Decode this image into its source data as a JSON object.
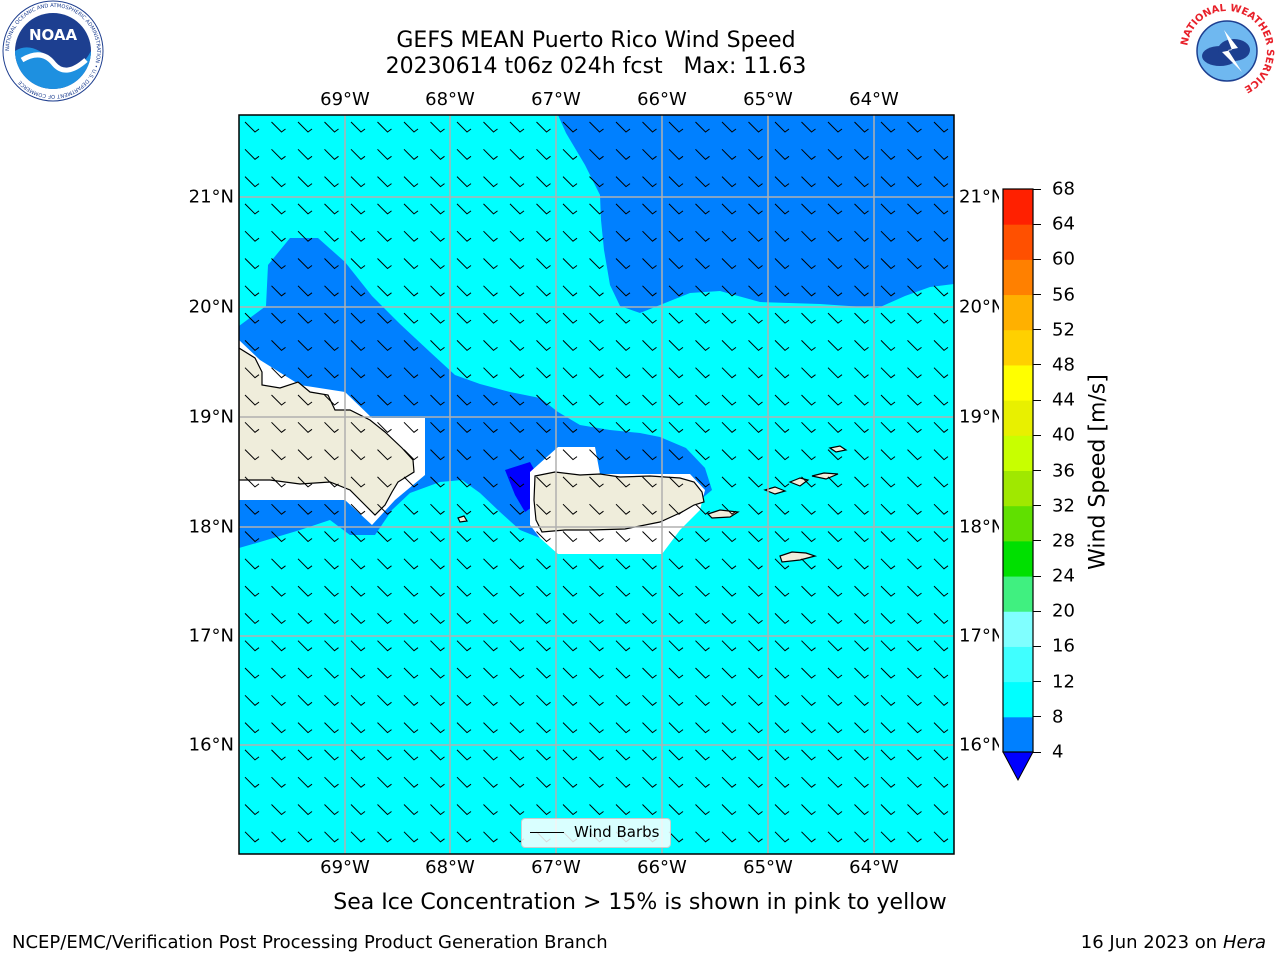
{
  "header": {
    "title_line1": "GEFS MEAN Puerto Rico Wind Speed",
    "title_line2": "20230614 t06z 024h fcst   Max: 11.63"
  },
  "logos": {
    "noaa": {
      "text": "NOAA",
      "ring_text": "NATIONAL OCEANIC AND ATMOSPHERIC ADMINISTRATION • U.S. DEPARTMENT OF COMMERCE"
    },
    "nws": {
      "ring_text": "NATIONAL WEATHER SERVICE"
    }
  },
  "map": {
    "lon_labels": [
      "69°W",
      "68°W",
      "67°W",
      "66°W",
      "65°W",
      "64°W"
    ],
    "lat_labels": [
      "21°N",
      "20°N",
      "19°N",
      "18°N",
      "17°N",
      "16°N"
    ],
    "legend_label": "Wind Barbs",
    "colors": {
      "ocean_light": "#00ffff",
      "ocean_mid": "#0080ff",
      "ocean_dark": "#0000ff",
      "land": "#efeddb",
      "grid": "#b0b0b0"
    }
  },
  "colorbar": {
    "label": "Wind Speed [m/s]",
    "ticks": [
      "4",
      "8",
      "12",
      "16",
      "20",
      "24",
      "28",
      "32",
      "36",
      "40",
      "44",
      "48",
      "52",
      "56",
      "60",
      "64",
      "68"
    ],
    "colors": [
      "#0080ff",
      "#00ffff",
      "#40ffff",
      "#80ffff",
      "#40f080",
      "#00e000",
      "#60e000",
      "#a0e800",
      "#c8ff00",
      "#e8f000",
      "#ffff00",
      "#ffd000",
      "#ffb000",
      "#ff8000",
      "#ff5000",
      "#ff2000"
    ],
    "under_color": "#0000ff"
  },
  "footer": {
    "note": "Sea Ice Concentration > 15% is shown in pink to yellow",
    "left": "NCEP/EMC/Verification Post Processing Product Generation Branch",
    "right_prefix": "16 Jun 2023 on",
    "right_machine": "Hera"
  }
}
